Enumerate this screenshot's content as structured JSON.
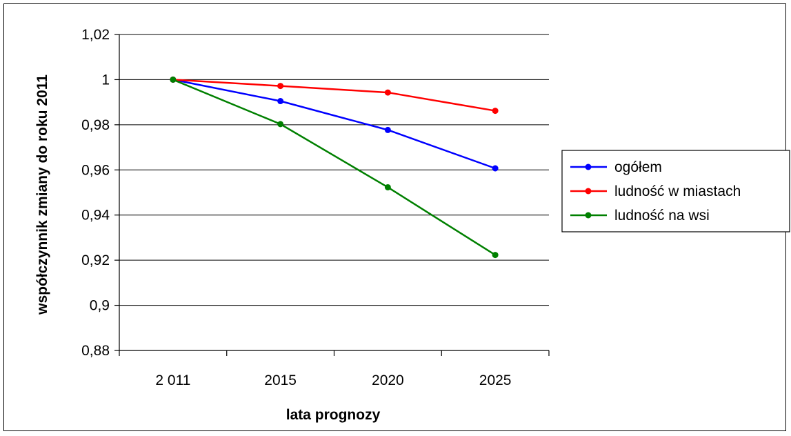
{
  "chart_data": {
    "type": "line",
    "xlabel": "lata prognozy",
    "ylabel": "współczynnik zmiany do roku 2011",
    "categories": [
      "2 011",
      "2015",
      "2020",
      "2025"
    ],
    "ylim": [
      0.88,
      1.02
    ],
    "yticks": [
      "1,02",
      "1",
      "0,98",
      "0,96",
      "0,94",
      "0,92",
      "0,9",
      "0,88"
    ],
    "ytick_values": [
      1.02,
      1.0,
      0.98,
      0.96,
      0.94,
      0.92,
      0.9,
      0.88
    ],
    "grid": "horizontal",
    "legend_position": "right",
    "series": [
      {
        "name": "ogółem",
        "color": "#0000ff",
        "values": [
          1.0,
          0.9905,
          0.9777,
          0.9607
        ]
      },
      {
        "name": "ludność w miastach",
        "color": "#ff0000",
        "values": [
          1.0,
          0.9972,
          0.9943,
          0.9862
        ]
      },
      {
        "name": "ludność na wsi",
        "color": "#008000",
        "values": [
          1.0,
          0.9803,
          0.9523,
          0.9223
        ]
      }
    ]
  }
}
